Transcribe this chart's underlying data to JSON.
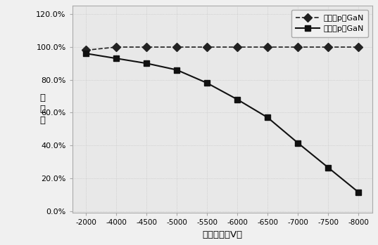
{
  "x_labels": [
    "-2000",
    "-4000",
    "-4500",
    "-5000",
    "-5500",
    "-6000",
    "-6500",
    "-7000",
    "-7500",
    "-8000"
  ],
  "x_values": [
    -2000,
    -4000,
    -4500,
    -5000,
    -5500,
    -6000,
    -6500,
    -7000,
    -7500,
    -8000
  ],
  "series1_name": "有低温p型GaN",
  "series2_name": "无低温p型GaN",
  "series1_values": [
    0.98,
    0.999,
    0.999,
    0.999,
    0.999,
    0.999,
    0.999,
    0.999,
    0.999,
    0.999
  ],
  "series2_values": [
    0.96,
    0.93,
    0.9,
    0.86,
    0.78,
    0.68,
    0.57,
    0.415,
    0.265,
    0.115
  ],
  "ylabel_chars": [
    "通",
    "过",
    "率"
  ],
  "xlabel": "测试电压（V）",
  "yticks": [
    0.0,
    0.2,
    0.4,
    0.6,
    0.8,
    1.0,
    1.2
  ],
  "ytick_labels": [
    "0.0%",
    "20.0%",
    "40.0%",
    "60.0%",
    "80.0%",
    "100.0%",
    "120.0%"
  ],
  "series1_color": "#222222",
  "series2_color": "#111111",
  "background_color": "#f0f0f0",
  "grid_color": "#bbbbbb",
  "plot_bg": "#e8e8e8"
}
